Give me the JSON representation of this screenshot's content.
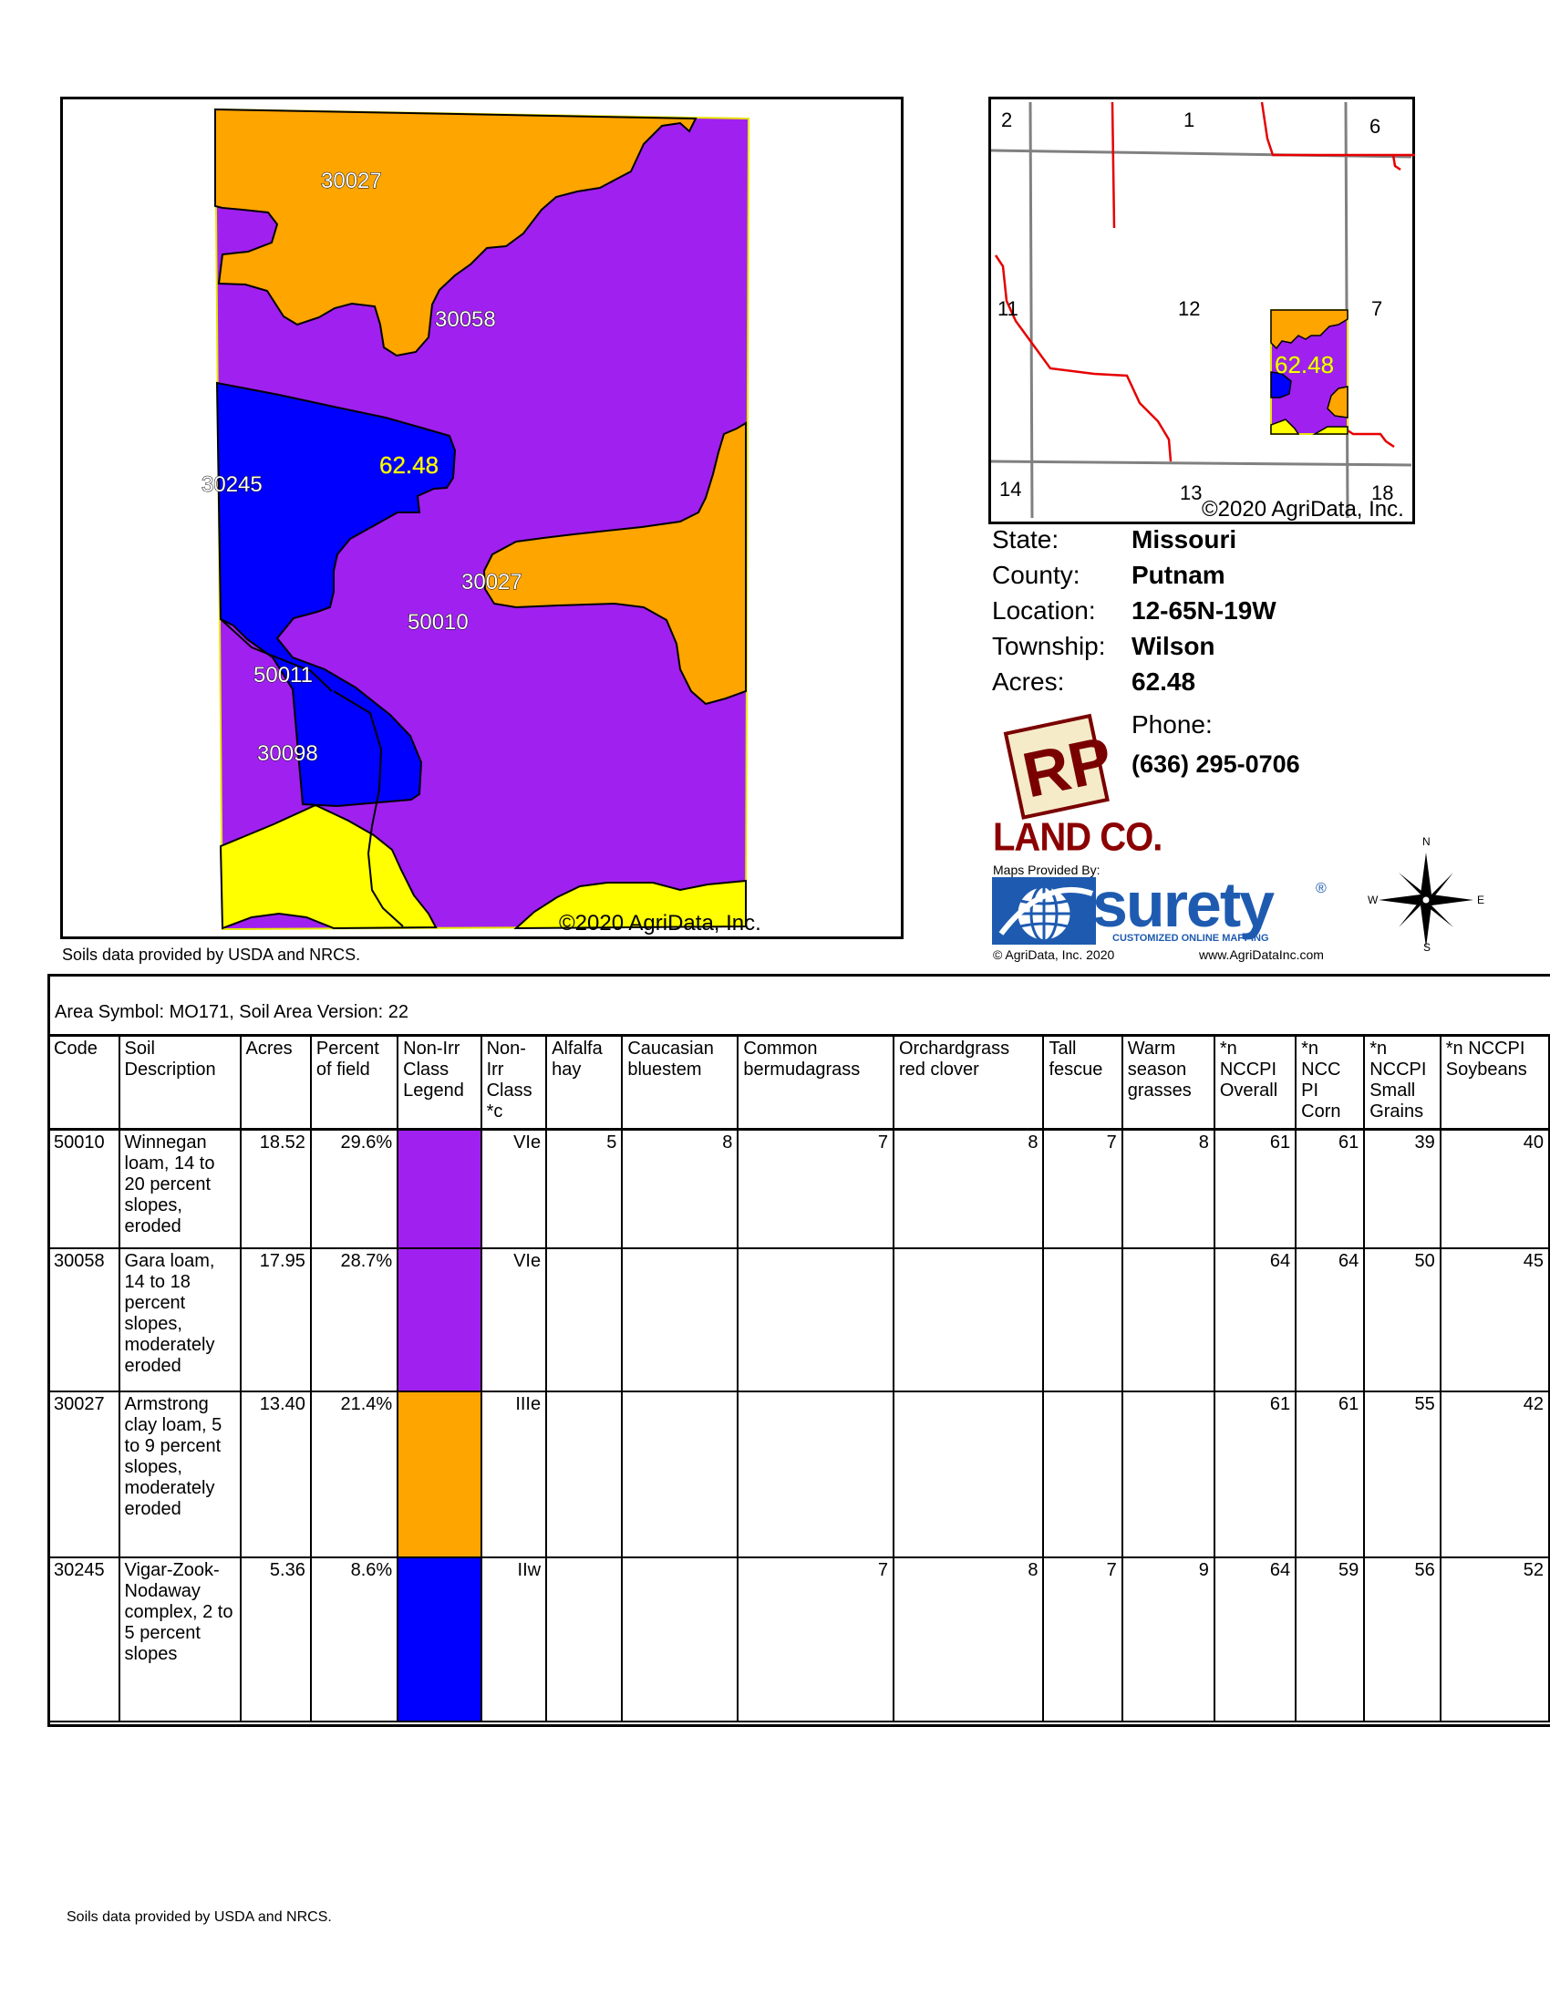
{
  "main_map": {
    "labels": [
      "30027",
      "30058",
      "30245",
      "62.48",
      "30027",
      "50010",
      "50011",
      "30098"
    ],
    "copyright": "©2020 AgriData, Inc."
  },
  "inset_map": {
    "section_numbers": [
      "2",
      "1",
      "6",
      "11",
      "12",
      "7",
      "14",
      "13",
      "18"
    ],
    "acres_label": "62.48",
    "copyright": "©2020 AgriData, Inc."
  },
  "soils_note": "Soils data provided by USDA and NRCS.",
  "info": {
    "state_label": "State:",
    "state": "Missouri",
    "county_label": "County:",
    "county": "Putnam",
    "location_label": "Location:",
    "location": "12-65N-19W",
    "township_label": "Township:",
    "township": "Wilson",
    "acres_label": "Acres:",
    "acres": "62.48",
    "phone_label": "Phone:",
    "phone": "(636) 295-0706"
  },
  "branding": {
    "rp_logo_text": "RP",
    "land_co": "LAND CO.",
    "maps_provided_by": "Maps Provided By:",
    "surety": "surety",
    "surety_registered": "®",
    "surety_tagline": "CUSTOMIZED ONLINE MAPPING",
    "agridata_copy": "© AgriData, Inc. 2020",
    "agridata_url": "www.AgriDataInc.com"
  },
  "compass": {
    "n": "N",
    "s": "S",
    "e": "E",
    "w": "W"
  },
  "table": {
    "area_symbol": "Area Symbol: MO171, Soil Area Version: 22",
    "headers": [
      "Code",
      "Soil Description",
      "Acres",
      "Percent of field",
      "Non-Irr Class Legend",
      "Non-Irr Class *c",
      "Alfalfa hay",
      "Caucasian bluestem",
      "Common bermudagrass",
      "Orchardgrass red clover",
      "Tall fescue",
      "Warm season grasses",
      "*n NCCPI Overall",
      "*n NCC PI Corn",
      "*n NCCPI Small Grains",
      "*n NCCPI Soybeans"
    ],
    "rows": [
      {
        "code": "50010",
        "desc": "Winnegan loam, 14 to 20 percent slopes, eroded",
        "acres": "18.52",
        "pct": "29.6%",
        "color": "#a020f0",
        "cls": "VIe",
        "alfalfa": "5",
        "caucasian": "8",
        "bermuda": "7",
        "orchard": "8",
        "fescue": "7",
        "warm": "8",
        "overall": "61",
        "corn": "61",
        "small": "39",
        "soy": "40"
      },
      {
        "code": "30058",
        "desc": "Gara loam, 14 to 18 percent slopes, moderately eroded",
        "acres": "17.95",
        "pct": "28.7%",
        "color": "#a020f0",
        "cls": "VIe",
        "alfalfa": "",
        "caucasian": "",
        "bermuda": "",
        "orchard": "",
        "fescue": "",
        "warm": "",
        "overall": "64",
        "corn": "64",
        "small": "50",
        "soy": "45"
      },
      {
        "code": "30027",
        "desc": "Armstrong clay loam, 5 to 9 percent slopes, moderately eroded",
        "acres": "13.40",
        "pct": "21.4%",
        "color": "#ffa500",
        "cls": "IIIe",
        "alfalfa": "",
        "caucasian": "",
        "bermuda": "",
        "orchard": "",
        "fescue": "",
        "warm": "",
        "overall": "61",
        "corn": "61",
        "small": "55",
        "soy": "42"
      },
      {
        "code": "30245",
        "desc": "Vigar-Zook-Nodaway complex, 2 to 5 percent slopes",
        "acres": "5.36",
        "pct": "8.6%",
        "color": "#0000ff",
        "cls": "IIw",
        "alfalfa": "",
        "caucasian": "",
        "bermuda": "7",
        "orchard": "8",
        "fescue": "7",
        "warm": "9",
        "overall": "64",
        "corn": "59",
        "small": "56",
        "soy": "52"
      }
    ]
  },
  "colors": {
    "purple": "#a020f0",
    "orange": "#ffa500",
    "blue": "#0000ff",
    "yellow": "#ffff00",
    "road": "#e60000",
    "section": "#808080"
  }
}
